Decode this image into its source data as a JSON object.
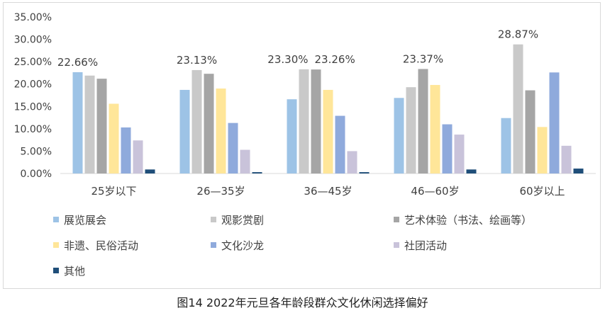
{
  "chart_data": {
    "type": "bar",
    "categories": [
      "25岁以下",
      "26—35岁",
      "36—45岁",
      "46—60岁",
      "60岁以上"
    ],
    "ylim": [
      0,
      35
    ],
    "yticks": [
      "0.00%",
      "5.00%",
      "10.00%",
      "15.00%",
      "20.00%",
      "25.00%",
      "30.00%",
      "35.00%"
    ],
    "grid": false,
    "legend_position": "bottom",
    "series": [
      {
        "name": "展览展会",
        "color": "#9dc3e6",
        "values": [
          22.66,
          18.7,
          16.6,
          16.9,
          12.4
        ]
      },
      {
        "name": "观影赏剧",
        "color": "#c9c9c9",
        "values": [
          21.9,
          23.13,
          23.3,
          19.3,
          28.87
        ]
      },
      {
        "name": "艺术体验（书法、绘画等）",
        "color": "#a5a5a5",
        "values": [
          21.2,
          22.3,
          23.26,
          23.37,
          18.6
        ]
      },
      {
        "name": "非遗、民俗活动",
        "color": "#ffe699",
        "values": [
          15.6,
          19.0,
          18.7,
          19.8,
          10.4
        ]
      },
      {
        "name": "文化沙龙",
        "color": "#8faadc",
        "values": [
          10.3,
          11.3,
          12.9,
          11.0,
          22.6
        ]
      },
      {
        "name": "社团活动",
        "color": "#c9c3da",
        "values": [
          7.4,
          5.3,
          5.0,
          8.7,
          6.2
        ]
      },
      {
        "name": "其他",
        "color": "#1f4e79",
        "values": [
          0.9,
          0.3,
          0.3,
          0.9,
          1.1
        ]
      }
    ],
    "data_labels": [
      {
        "category": 0,
        "series": 0,
        "text": "22.66%"
      },
      {
        "category": 1,
        "series": 1,
        "text": "23.13%"
      },
      {
        "category": 2,
        "series": 1,
        "text": "23.30%"
      },
      {
        "category": 2,
        "series": 2,
        "text": "23.26%"
      },
      {
        "category": 3,
        "series": 2,
        "text": "23.37%"
      },
      {
        "category": 4,
        "series": 1,
        "text": "28.87%"
      }
    ]
  },
  "caption": "图14 2022年元旦各年龄段群众文化休闲选择偏好"
}
